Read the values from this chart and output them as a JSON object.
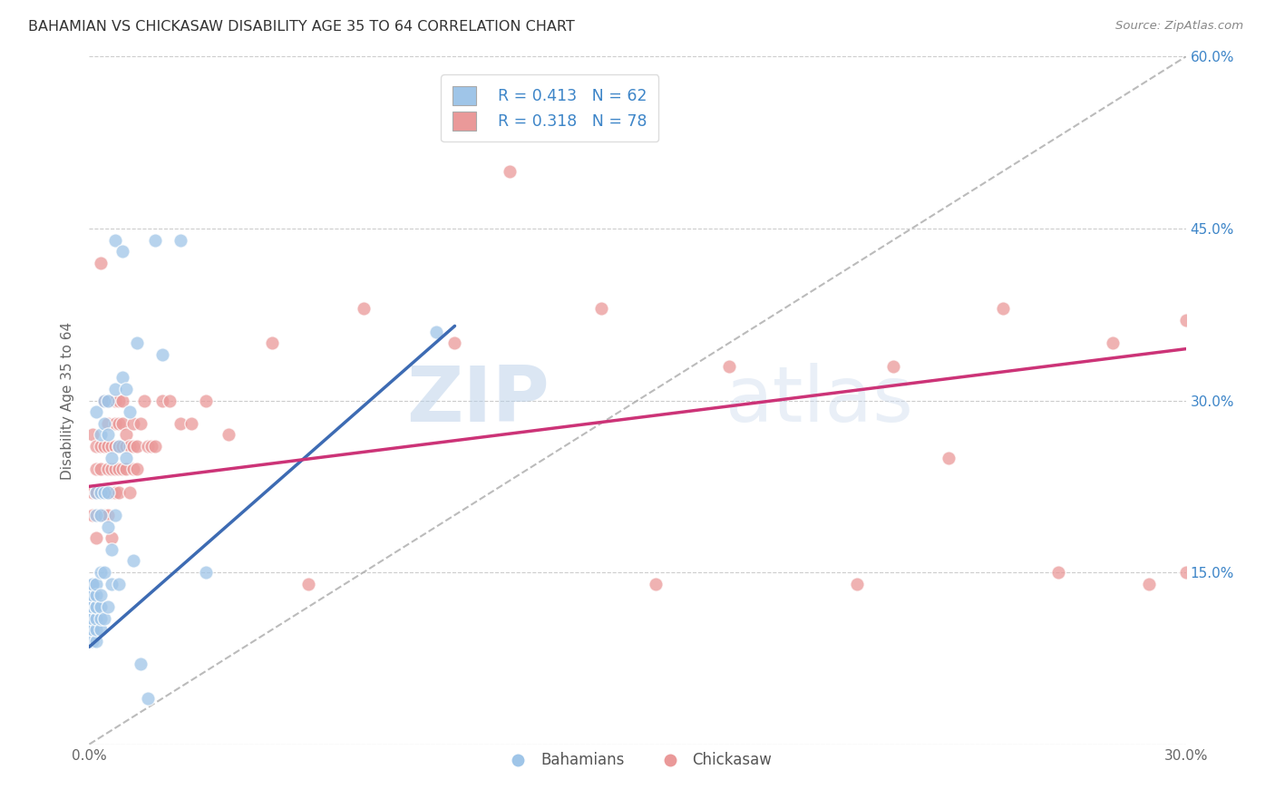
{
  "title": "BAHAMIAN VS CHICKASAW DISABILITY AGE 35 TO 64 CORRELATION CHART",
  "source": "Source: ZipAtlas.com",
  "ylabel": "Disability Age 35 to 64",
  "xmin": 0.0,
  "xmax": 0.3,
  "ymin": 0.0,
  "ymax": 0.6,
  "xticks": [
    0.0,
    0.05,
    0.1,
    0.15,
    0.2,
    0.25,
    0.3
  ],
  "yticks": [
    0.0,
    0.15,
    0.3,
    0.45,
    0.6
  ],
  "xtick_labels": [
    "0.0%",
    "",
    "",
    "",
    "",
    "",
    "30.0%"
  ],
  "ytick_labels_left": [
    "",
    "",
    "",
    "",
    ""
  ],
  "ytick_labels_right": [
    "",
    "15.0%",
    "30.0%",
    "45.0%",
    "60.0%"
  ],
  "legend_r1": "R = 0.413",
  "legend_n1": "N = 62",
  "legend_r2": "R = 0.318",
  "legend_n2": "N = 78",
  "blue_color": "#9fc5e8",
  "pink_color": "#ea9999",
  "blue_line_color": "#3d6bb3",
  "pink_line_color": "#cc3377",
  "dashed_line_color": "#aaaaaa",
  "legend_text_color": "#3d85c8",
  "watermark_zip": "ZIP",
  "watermark_atlas": "atlas",
  "blue_line_x": [
    0.0,
    0.1
  ],
  "blue_line_y": [
    0.085,
    0.365
  ],
  "pink_line_x": [
    0.0,
    0.3
  ],
  "pink_line_y": [
    0.225,
    0.345
  ],
  "bahamians_x": [
    0.001,
    0.001,
    0.001,
    0.001,
    0.001,
    0.001,
    0.001,
    0.001,
    0.001,
    0.001,
    0.001,
    0.001,
    0.002,
    0.002,
    0.002,
    0.002,
    0.002,
    0.002,
    0.002,
    0.002,
    0.002,
    0.002,
    0.003,
    0.003,
    0.003,
    0.003,
    0.003,
    0.003,
    0.003,
    0.003,
    0.004,
    0.004,
    0.004,
    0.004,
    0.004,
    0.005,
    0.005,
    0.005,
    0.005,
    0.005,
    0.006,
    0.006,
    0.006,
    0.007,
    0.007,
    0.007,
    0.008,
    0.008,
    0.009,
    0.009,
    0.01,
    0.01,
    0.011,
    0.012,
    0.013,
    0.014,
    0.016,
    0.018,
    0.02,
    0.025,
    0.032,
    0.095
  ],
  "bahamians_y": [
    0.09,
    0.1,
    0.1,
    0.11,
    0.11,
    0.12,
    0.12,
    0.12,
    0.13,
    0.13,
    0.14,
    0.14,
    0.09,
    0.1,
    0.11,
    0.12,
    0.12,
    0.13,
    0.14,
    0.2,
    0.22,
    0.29,
    0.1,
    0.11,
    0.12,
    0.13,
    0.15,
    0.2,
    0.22,
    0.27,
    0.11,
    0.15,
    0.22,
    0.28,
    0.3,
    0.12,
    0.19,
    0.22,
    0.27,
    0.3,
    0.14,
    0.17,
    0.25,
    0.2,
    0.31,
    0.44,
    0.14,
    0.26,
    0.32,
    0.43,
    0.25,
    0.31,
    0.29,
    0.16,
    0.35,
    0.07,
    0.04,
    0.44,
    0.34,
    0.44,
    0.15,
    0.36
  ],
  "chickasaw_x": [
    0.001,
    0.001,
    0.001,
    0.002,
    0.002,
    0.002,
    0.002,
    0.003,
    0.003,
    0.003,
    0.003,
    0.003,
    0.004,
    0.004,
    0.004,
    0.004,
    0.005,
    0.005,
    0.005,
    0.005,
    0.005,
    0.005,
    0.006,
    0.006,
    0.006,
    0.006,
    0.007,
    0.007,
    0.007,
    0.007,
    0.007,
    0.008,
    0.008,
    0.008,
    0.008,
    0.008,
    0.009,
    0.009,
    0.009,
    0.009,
    0.01,
    0.01,
    0.01,
    0.011,
    0.011,
    0.012,
    0.012,
    0.012,
    0.013,
    0.013,
    0.014,
    0.015,
    0.016,
    0.017,
    0.018,
    0.02,
    0.022,
    0.025,
    0.028,
    0.032,
    0.038,
    0.05,
    0.06,
    0.075,
    0.1,
    0.115,
    0.14,
    0.155,
    0.175,
    0.21,
    0.22,
    0.235,
    0.25,
    0.265,
    0.28,
    0.29,
    0.3,
    0.3
  ],
  "chickasaw_y": [
    0.2,
    0.22,
    0.27,
    0.18,
    0.22,
    0.24,
    0.26,
    0.2,
    0.22,
    0.24,
    0.26,
    0.42,
    0.2,
    0.22,
    0.26,
    0.3,
    0.2,
    0.22,
    0.24,
    0.26,
    0.28,
    0.3,
    0.18,
    0.22,
    0.24,
    0.26,
    0.22,
    0.24,
    0.26,
    0.28,
    0.3,
    0.22,
    0.24,
    0.26,
    0.28,
    0.3,
    0.24,
    0.26,
    0.28,
    0.3,
    0.24,
    0.26,
    0.27,
    0.22,
    0.26,
    0.24,
    0.26,
    0.28,
    0.24,
    0.26,
    0.28,
    0.3,
    0.26,
    0.26,
    0.26,
    0.3,
    0.3,
    0.28,
    0.28,
    0.3,
    0.27,
    0.35,
    0.14,
    0.38,
    0.35,
    0.5,
    0.38,
    0.14,
    0.33,
    0.14,
    0.33,
    0.25,
    0.38,
    0.15,
    0.35,
    0.14,
    0.15,
    0.37
  ]
}
